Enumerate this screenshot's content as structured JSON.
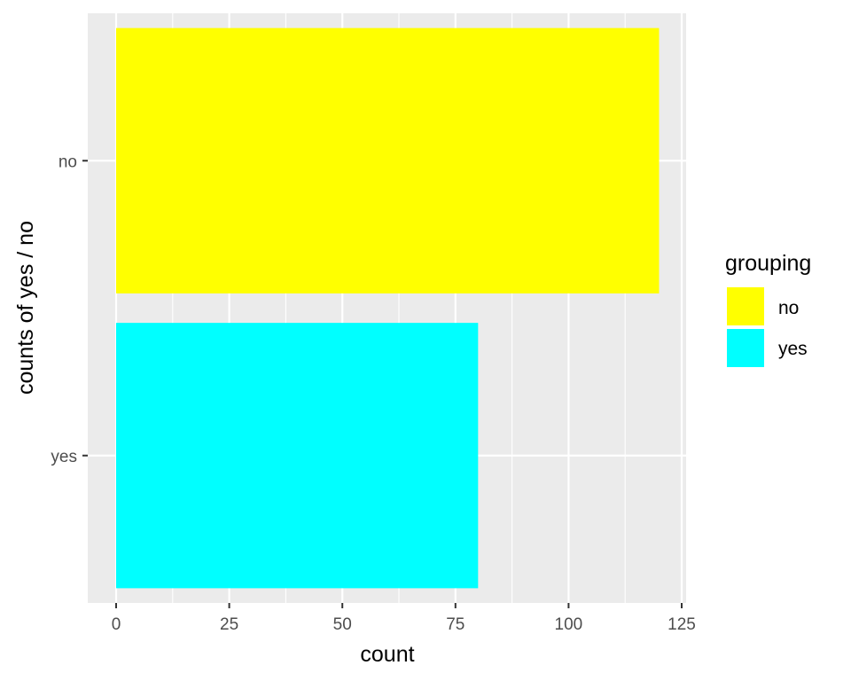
{
  "chart_data": {
    "type": "bar",
    "orientation": "horizontal",
    "categories": [
      "no",
      "yes"
    ],
    "values": [
      120,
      80
    ],
    "colors": {
      "no": "#FFFF00",
      "yes": "#00FFFF"
    },
    "xlabel": "count",
    "ylabel": "counts of yes / no",
    "xlim": [
      -5,
      126
    ],
    "xticks": [
      0,
      25,
      50,
      75,
      100,
      125
    ],
    "xtick_labels": [
      "0",
      "25",
      "50",
      "75",
      "100",
      "125"
    ],
    "grid": true,
    "panel_background": "#EBEBEB",
    "grid_color": "#FFFFFF",
    "legend": {
      "title": "grouping",
      "placement": "right",
      "entries": [
        {
          "label": "no",
          "color": "#FFFF00"
        },
        {
          "label": "yes",
          "color": "#00FFFF"
        }
      ]
    }
  }
}
